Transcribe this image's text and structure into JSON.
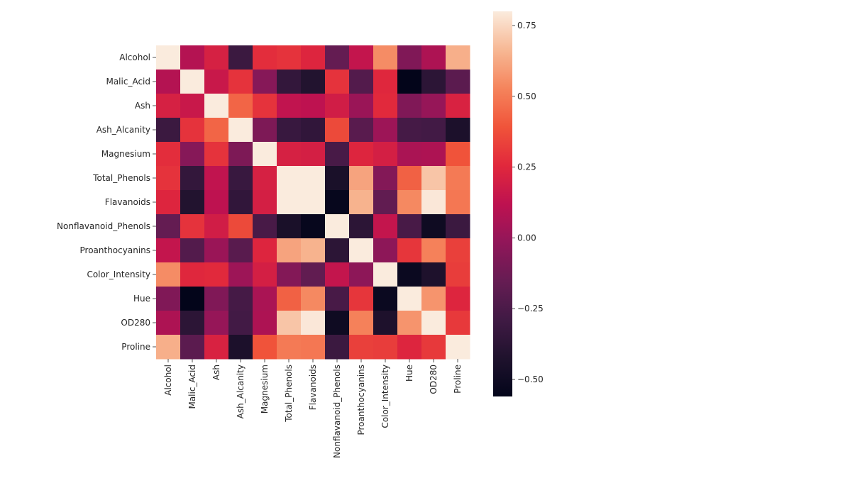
{
  "chart_data": {
    "type": "heatmap",
    "title": "",
    "xlabel": "",
    "ylabel": "",
    "rows": [
      "Alcohol",
      "Malic_Acid",
      "Ash",
      "Ash_Alcanity",
      "Magnesium",
      "Total_Phenols",
      "Flavanoids",
      "Nonflavanoid_Phenols",
      "Proanthocyanins",
      "Color_Intensity",
      "Hue",
      "OD280",
      "Proline"
    ],
    "columns": [
      "Alcohol",
      "Malic_Acid",
      "Ash",
      "Ash_Alcanity",
      "Magnesium",
      "Total_Phenols",
      "Flavanoids",
      "Nonflavanoid_Phenols",
      "Proanthocyanins",
      "Color_Intensity",
      "Hue",
      "OD280",
      "Proline"
    ],
    "values": [
      [
        1.0,
        0.09,
        0.21,
        -0.31,
        0.27,
        0.29,
        0.24,
        -0.16,
        0.14,
        0.55,
        -0.07,
        0.07,
        0.64
      ],
      [
        0.09,
        1.0,
        0.16,
        0.29,
        -0.05,
        -0.34,
        -0.41,
        0.29,
        -0.22,
        0.25,
        -0.56,
        -0.37,
        -0.19
      ],
      [
        0.21,
        0.16,
        1.0,
        0.44,
        0.29,
        0.13,
        0.12,
        0.19,
        0.01,
        0.26,
        -0.07,
        0.0,
        0.22
      ],
      [
        -0.31,
        0.29,
        0.44,
        1.0,
        -0.08,
        -0.32,
        -0.35,
        0.36,
        -0.2,
        0.02,
        -0.27,
        -0.28,
        -0.44
      ],
      [
        0.27,
        -0.05,
        0.29,
        -0.08,
        1.0,
        0.21,
        0.2,
        -0.26,
        0.24,
        0.2,
        0.06,
        0.07,
        0.39
      ],
      [
        0.29,
        -0.34,
        0.13,
        -0.32,
        0.21,
        1.0,
        0.86,
        -0.45,
        0.61,
        -0.06,
        0.43,
        0.7,
        0.5
      ],
      [
        0.24,
        -0.41,
        0.12,
        -0.35,
        0.2,
        0.86,
        1.0,
        -0.54,
        0.65,
        -0.17,
        0.54,
        0.79,
        0.49
      ],
      [
        -0.16,
        0.29,
        0.19,
        0.36,
        -0.26,
        -0.45,
        -0.54,
        1.0,
        -0.37,
        0.14,
        -0.26,
        -0.5,
        -0.31
      ],
      [
        0.14,
        -0.22,
        0.01,
        -0.2,
        0.24,
        0.61,
        0.65,
        -0.37,
        1.0,
        -0.03,
        0.3,
        0.52,
        0.33
      ],
      [
        0.55,
        0.25,
        0.26,
        0.02,
        0.2,
        -0.06,
        -0.17,
        0.14,
        -0.03,
        1.0,
        -0.52,
        -0.43,
        0.32
      ],
      [
        -0.07,
        -0.56,
        -0.07,
        -0.27,
        0.06,
        0.43,
        0.54,
        -0.26,
        0.3,
        -0.52,
        1.0,
        0.57,
        0.24
      ],
      [
        0.07,
        -0.37,
        0.0,
        -0.28,
        0.07,
        0.7,
        0.79,
        -0.5,
        0.52,
        -0.43,
        0.57,
        1.0,
        0.31
      ],
      [
        0.64,
        -0.19,
        0.22,
        -0.44,
        0.39,
        0.5,
        0.49,
        -0.31,
        0.33,
        0.32,
        0.24,
        0.31,
        1.0
      ]
    ],
    "color_range": [
      -0.56,
      0.8
    ],
    "colormap": "rocket",
    "colorbar_ticks": [
      0.75,
      0.5,
      0.25,
      0.0,
      -0.25,
      -0.5
    ],
    "colorbar_tick_labels": [
      "0.75",
      "0.50",
      "0.25",
      "0.00",
      "−0.25",
      "−0.50"
    ],
    "colorbar_position": "right"
  }
}
